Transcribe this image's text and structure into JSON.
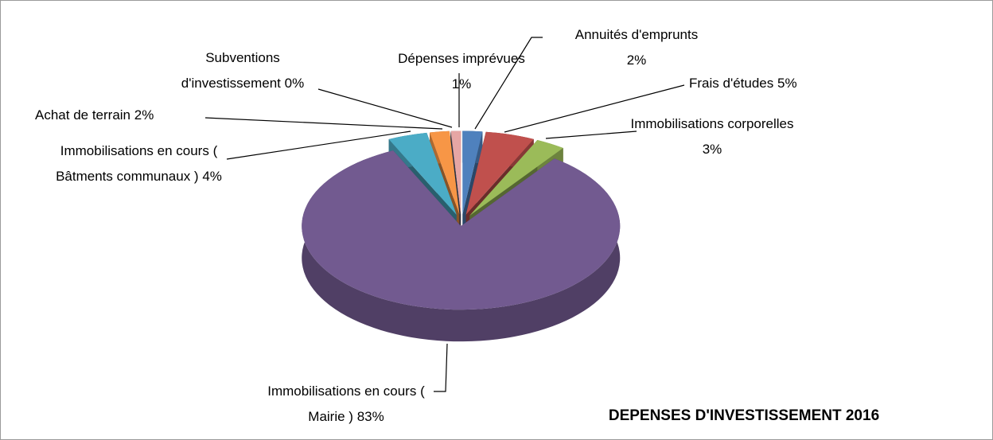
{
  "chart_data": {
    "type": "pie",
    "title": "DEPENSES D'INVESTISSEMENT 2016",
    "categories": [
      "Annuités d'emprunts",
      "Frais d'études",
      "Immobilisations corporelles",
      "Immobilisations en cours  ( Mairie )",
      "Immobilisations en cours  ( Bâtments communaux )",
      "Achat de terrain",
      "Subventions d'investissement",
      "Dépenses imprévues"
    ],
    "values": [
      2,
      5,
      3,
      83,
      4,
      2,
      0,
      1
    ],
    "value_labels": [
      "2%",
      "5%",
      "3%",
      "83%",
      "4%",
      "2%",
      "0%",
      "1%"
    ],
    "colors": [
      "#4f81bd",
      "#c0504d",
      "#9bbb59",
      "#725a90",
      "#4bacc6",
      "#f79646",
      "#2c4d75",
      "#e6a6a4"
    ]
  }
}
